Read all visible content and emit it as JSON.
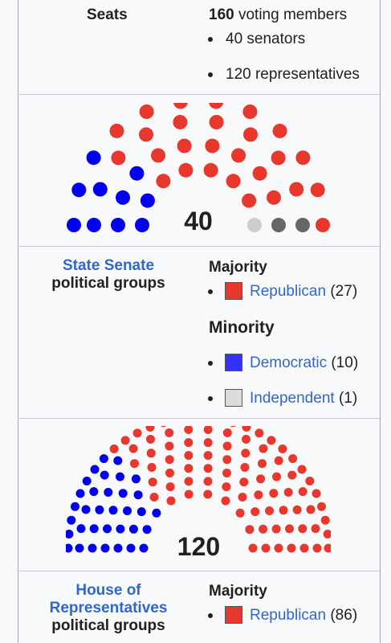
{
  "seats": {
    "label": "Seats",
    "total_number": "160",
    "total_rest": " voting members",
    "items": [
      "40 senators",
      "120 representatives"
    ]
  },
  "senate": {
    "seat_count": "40",
    "link": "State Senate",
    "subtitle": "political groups",
    "majority_label": "Majority",
    "minority_label": "Minority",
    "parties": [
      {
        "name": "Republican",
        "count": "(27)",
        "color": "#e8382e",
        "group": "majority"
      },
      {
        "name": "Democratic",
        "count": "(10)",
        "color": "#3333ff",
        "group": "minority"
      },
      {
        "name": "Independent",
        "count": "(1)",
        "color": "#dcdcdc",
        "group": "minority"
      }
    ],
    "seat_colors": {
      "blue": "#0000ee",
      "red": "#e8382e",
      "gray": "#cccccc",
      "dark": "#666666"
    },
    "diagram_counts": {
      "blue": 10,
      "red": 27,
      "gray": 1,
      "dark": 2
    }
  },
  "house": {
    "seat_count": "120",
    "link_line1": "House of",
    "link_line2": "Representatives",
    "subtitle": "political groups",
    "majority_label": "Majority",
    "parties": [
      {
        "name": "Republican",
        "count": "(86)",
        "color": "#e8382e",
        "group": "majority"
      }
    ],
    "diagram_counts": {
      "blue": 34,
      "red": 86
    }
  }
}
